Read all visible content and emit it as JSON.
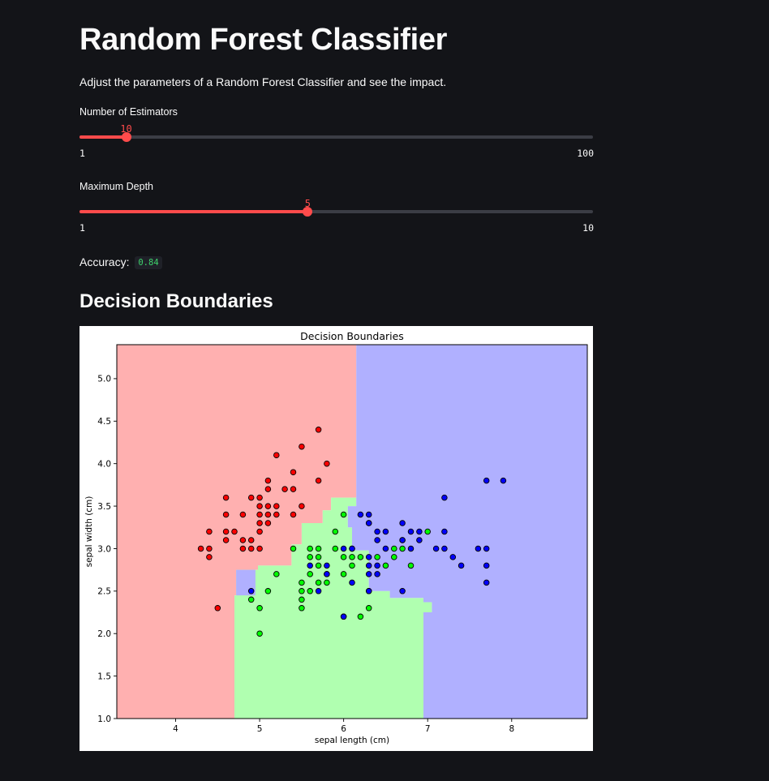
{
  "page": {
    "title": "Random Forest Classifier",
    "description": "Adjust the parameters of a Random Forest Classifier and see the impact."
  },
  "sliders": {
    "estimators": {
      "label": "Number of Estimators",
      "value": 10,
      "min": 1,
      "max": 100
    },
    "depth": {
      "label": "Maximum Depth",
      "value": 5,
      "min": 1,
      "max": 10
    }
  },
  "accuracy": {
    "label": "Accuracy:",
    "value": "0.84"
  },
  "section": {
    "heading": "Decision Boundaries"
  },
  "colors": {
    "accent": "#ff4b4b",
    "background": "#131418",
    "region_class_0": "#ffb0b0",
    "region_class_1": "#b0ffb0",
    "region_class_2": "#b0b0ff",
    "point_class_0": "#ff0000",
    "point_class_1": "#00ff00",
    "point_class_2": "#0000ff"
  },
  "chart_data": {
    "type": "scatter",
    "title": "Decision Boundaries",
    "xlabel": "sepal length (cm)",
    "ylabel": "sepal width (cm)",
    "xlim": [
      3.3,
      8.9
    ],
    "ylim": [
      1.0,
      5.4
    ],
    "xticks": [
      "4",
      "5",
      "6",
      "7",
      "8"
    ],
    "yticks": [
      "1.0",
      "1.5",
      "2.0",
      "2.5",
      "3.0",
      "3.5",
      "4.0",
      "4.5",
      "5.0"
    ],
    "grid": false,
    "legend": "none",
    "regions": [
      {
        "class": 0,
        "polygon": [
          [
            3.3,
            1.0
          ],
          [
            4.7,
            1.0
          ],
          [
            4.7,
            2.45
          ],
          [
            4.72,
            2.45
          ],
          [
            4.72,
            2.75
          ],
          [
            4.98,
            2.75
          ],
          [
            4.98,
            2.8
          ],
          [
            5.38,
            2.8
          ],
          [
            5.38,
            3.05
          ],
          [
            5.5,
            3.05
          ],
          [
            5.5,
            3.3
          ],
          [
            5.75,
            3.3
          ],
          [
            5.75,
            3.45
          ],
          [
            5.85,
            3.45
          ],
          [
            5.85,
            3.6
          ],
          [
            6.15,
            3.6
          ],
          [
            6.15,
            5.4
          ],
          [
            3.3,
            5.4
          ]
        ]
      },
      {
        "class": 1,
        "polygon": [
          [
            4.7,
            1.0
          ],
          [
            6.95,
            1.0
          ],
          [
            6.95,
            2.25
          ],
          [
            7.05,
            2.25
          ],
          [
            7.05,
            2.37
          ],
          [
            6.95,
            2.37
          ],
          [
            6.95,
            2.42
          ],
          [
            6.55,
            2.42
          ],
          [
            6.55,
            2.5
          ],
          [
            6.3,
            2.5
          ],
          [
            6.3,
            2.9
          ],
          [
            6.95,
            2.9
          ],
          [
            6.95,
            2.85
          ],
          [
            6.95,
            2.83
          ],
          [
            6.62,
            2.83
          ],
          [
            6.62,
            2.75
          ],
          [
            6.3,
            2.75
          ],
          [
            6.3,
            2.98
          ],
          [
            6.1,
            2.98
          ],
          [
            6.1,
            3.25
          ],
          [
            6.05,
            3.25
          ],
          [
            6.05,
            3.5
          ],
          [
            6.15,
            3.5
          ],
          [
            6.15,
            3.6
          ],
          [
            5.85,
            3.6
          ],
          [
            5.85,
            3.45
          ],
          [
            5.75,
            3.45
          ],
          [
            5.75,
            3.3
          ],
          [
            5.5,
            3.3
          ],
          [
            5.5,
            3.05
          ],
          [
            5.38,
            3.05
          ],
          [
            5.38,
            2.8
          ],
          [
            4.98,
            2.8
          ],
          [
            4.98,
            2.75
          ],
          [
            4.72,
            2.75
          ],
          [
            4.72,
            2.45
          ],
          [
            4.7,
            2.45
          ]
        ]
      },
      {
        "class": 2,
        "polygon": [
          [
            6.15,
            5.4
          ],
          [
            6.15,
            3.6
          ],
          [
            6.15,
            3.5
          ],
          [
            6.05,
            3.5
          ],
          [
            6.05,
            3.25
          ],
          [
            6.1,
            3.25
          ],
          [
            6.1,
            2.98
          ],
          [
            6.3,
            2.98
          ],
          [
            6.3,
            2.75
          ],
          [
            6.62,
            2.75
          ],
          [
            6.62,
            2.83
          ],
          [
            6.95,
            2.83
          ],
          [
            6.95,
            2.9
          ],
          [
            6.3,
            2.9
          ],
          [
            6.3,
            2.5
          ],
          [
            6.55,
            2.5
          ],
          [
            6.55,
            2.42
          ],
          [
            6.95,
            2.42
          ],
          [
            6.95,
            2.37
          ],
          [
            7.05,
            2.37
          ],
          [
            7.05,
            2.25
          ],
          [
            6.95,
            2.25
          ],
          [
            6.95,
            1.0
          ],
          [
            8.9,
            1.0
          ],
          [
            8.9,
            5.4
          ]
        ]
      },
      {
        "class": 2,
        "polygon": [
          [
            4.7,
            2.45
          ],
          [
            4.95,
            2.45
          ],
          [
            4.95,
            2.75
          ],
          [
            4.72,
            2.75
          ],
          [
            4.72,
            2.45
          ]
        ]
      }
    ],
    "series": [
      {
        "class": 0,
        "points": [
          [
            4.3,
            3.0
          ],
          [
            4.4,
            2.9
          ],
          [
            4.4,
            3.0
          ],
          [
            4.4,
            3.2
          ],
          [
            4.5,
            2.3
          ],
          [
            4.6,
            3.1
          ],
          [
            4.6,
            3.2
          ],
          [
            4.6,
            3.4
          ],
          [
            4.6,
            3.6
          ],
          [
            4.7,
            3.2
          ],
          [
            4.8,
            3.0
          ],
          [
            4.8,
            3.1
          ],
          [
            4.8,
            3.4
          ],
          [
            4.9,
            3.0
          ],
          [
            4.9,
            3.1
          ],
          [
            4.9,
            3.6
          ],
          [
            5.0,
            3.0
          ],
          [
            5.0,
            3.2
          ],
          [
            5.0,
            3.3
          ],
          [
            5.0,
            3.4
          ],
          [
            5.0,
            3.5
          ],
          [
            5.0,
            3.6
          ],
          [
            5.1,
            3.3
          ],
          [
            5.1,
            3.4
          ],
          [
            5.1,
            3.5
          ],
          [
            5.1,
            3.7
          ],
          [
            5.1,
            3.8
          ],
          [
            5.2,
            3.4
          ],
          [
            5.2,
            3.5
          ],
          [
            5.2,
            4.1
          ],
          [
            5.3,
            3.7
          ],
          [
            5.4,
            3.4
          ],
          [
            5.4,
            3.7
          ],
          [
            5.4,
            3.9
          ],
          [
            5.5,
            3.5
          ],
          [
            5.5,
            4.2
          ],
          [
            5.7,
            3.8
          ],
          [
            5.7,
            4.4
          ],
          [
            5.8,
            4.0
          ]
        ]
      },
      {
        "class": 1,
        "points": [
          [
            4.9,
            2.4
          ],
          [
            5.0,
            2.0
          ],
          [
            5.0,
            2.3
          ],
          [
            5.1,
            2.5
          ],
          [
            5.2,
            2.7
          ],
          [
            5.4,
            3.0
          ],
          [
            5.5,
            2.3
          ],
          [
            5.5,
            2.4
          ],
          [
            5.5,
            2.5
          ],
          [
            5.5,
            2.6
          ],
          [
            5.6,
            2.5
          ],
          [
            5.6,
            2.7
          ],
          [
            5.6,
            2.9
          ],
          [
            5.6,
            3.0
          ],
          [
            5.7,
            2.6
          ],
          [
            5.7,
            2.8
          ],
          [
            5.7,
            2.9
          ],
          [
            5.7,
            3.0
          ],
          [
            5.8,
            2.6
          ],
          [
            5.8,
            2.7
          ],
          [
            5.9,
            3.0
          ],
          [
            5.9,
            3.2
          ],
          [
            6.0,
            2.2
          ],
          [
            6.0,
            2.7
          ],
          [
            6.0,
            2.9
          ],
          [
            6.0,
            3.4
          ],
          [
            6.1,
            2.8
          ],
          [
            6.1,
            2.9
          ],
          [
            6.1,
            3.0
          ],
          [
            6.2,
            2.2
          ],
          [
            6.2,
            2.9
          ],
          [
            6.3,
            2.3
          ],
          [
            6.3,
            2.5
          ],
          [
            6.3,
            3.3
          ],
          [
            6.4,
            2.9
          ],
          [
            6.5,
            2.8
          ],
          [
            6.6,
            2.9
          ],
          [
            6.6,
            3.0
          ],
          [
            6.7,
            3.0
          ],
          [
            6.7,
            3.1
          ],
          [
            6.8,
            2.8
          ],
          [
            7.0,
            3.2
          ]
        ]
      },
      {
        "class": 2,
        "points": [
          [
            4.9,
            2.5
          ],
          [
            5.6,
            2.8
          ],
          [
            5.7,
            2.5
          ],
          [
            5.8,
            2.7
          ],
          [
            5.8,
            2.8
          ],
          [
            6.0,
            2.2
          ],
          [
            6.0,
            3.0
          ],
          [
            6.1,
            2.6
          ],
          [
            6.1,
            3.0
          ],
          [
            6.2,
            3.4
          ],
          [
            6.3,
            2.5
          ],
          [
            6.3,
            2.7
          ],
          [
            6.3,
            2.8
          ],
          [
            6.3,
            2.9
          ],
          [
            6.3,
            3.3
          ],
          [
            6.3,
            3.4
          ],
          [
            6.4,
            2.7
          ],
          [
            6.4,
            2.8
          ],
          [
            6.4,
            3.1
          ],
          [
            6.4,
            3.2
          ],
          [
            6.5,
            3.0
          ],
          [
            6.5,
            3.2
          ],
          [
            6.7,
            2.5
          ],
          [
            6.7,
            3.1
          ],
          [
            6.7,
            3.3
          ],
          [
            6.8,
            3.0
          ],
          [
            6.8,
            3.2
          ],
          [
            6.9,
            3.1
          ],
          [
            6.9,
            3.2
          ],
          [
            7.1,
            3.0
          ],
          [
            7.2,
            3.0
          ],
          [
            7.2,
            3.2
          ],
          [
            7.2,
            3.6
          ],
          [
            7.3,
            2.9
          ],
          [
            7.4,
            2.8
          ],
          [
            7.6,
            3.0
          ],
          [
            7.7,
            2.6
          ],
          [
            7.7,
            2.8
          ],
          [
            7.7,
            3.0
          ],
          [
            7.7,
            3.8
          ],
          [
            7.9,
            3.8
          ]
        ]
      }
    ]
  }
}
